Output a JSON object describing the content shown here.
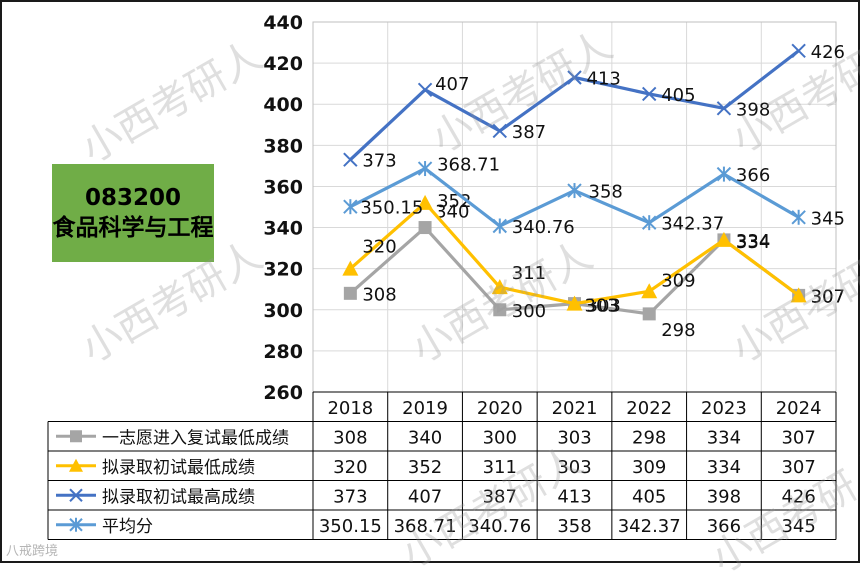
{
  "badge": {
    "line1": "083200",
    "line2": "食品科学与工程"
  },
  "watermark": "小西考研人",
  "footer": "八戒跨境",
  "chart_data": {
    "type": "line",
    "categories": [
      "2018",
      "2019",
      "2020",
      "2021",
      "2022",
      "2023",
      "2024"
    ],
    "ylim": [
      260,
      440
    ],
    "yticks": [
      260,
      280,
      300,
      320,
      340,
      360,
      380,
      400,
      420,
      440
    ],
    "grid": true,
    "legend": "table-left",
    "series": [
      {
        "name": "一志愿进入复试最低成绩",
        "color": "#a5a5a5",
        "marker": "square",
        "values": [
          308,
          340,
          300,
          303,
          298,
          334,
          307
        ],
        "table": [
          "308",
          "340",
          "300",
          "303",
          "298",
          "334",
          "307"
        ]
      },
      {
        "name": "拟录取初试最低成绩",
        "color": "#ffc000",
        "marker": "triangle",
        "values": [
          320,
          352,
          311,
          303,
          309,
          334,
          307
        ],
        "table": [
          "320",
          "352",
          "311",
          "303",
          "309",
          "334",
          "307"
        ]
      },
      {
        "name": "拟录取初试最高成绩",
        "color": "#4472c4",
        "marker": "x",
        "values": [
          373,
          407,
          387,
          413,
          405,
          398,
          426
        ],
        "table": [
          "373",
          "407",
          "387",
          "413",
          "405",
          "398",
          "426"
        ]
      },
      {
        "name": "平均分",
        "color": "#5b9bd5",
        "marker": "star",
        "values": [
          350.15,
          368.71,
          340.76,
          358,
          342.37,
          366,
          345
        ],
        "table": [
          "350.15",
          "368.71",
          "340.76",
          "358",
          "342.37",
          "366",
          "345"
        ]
      }
    ]
  }
}
